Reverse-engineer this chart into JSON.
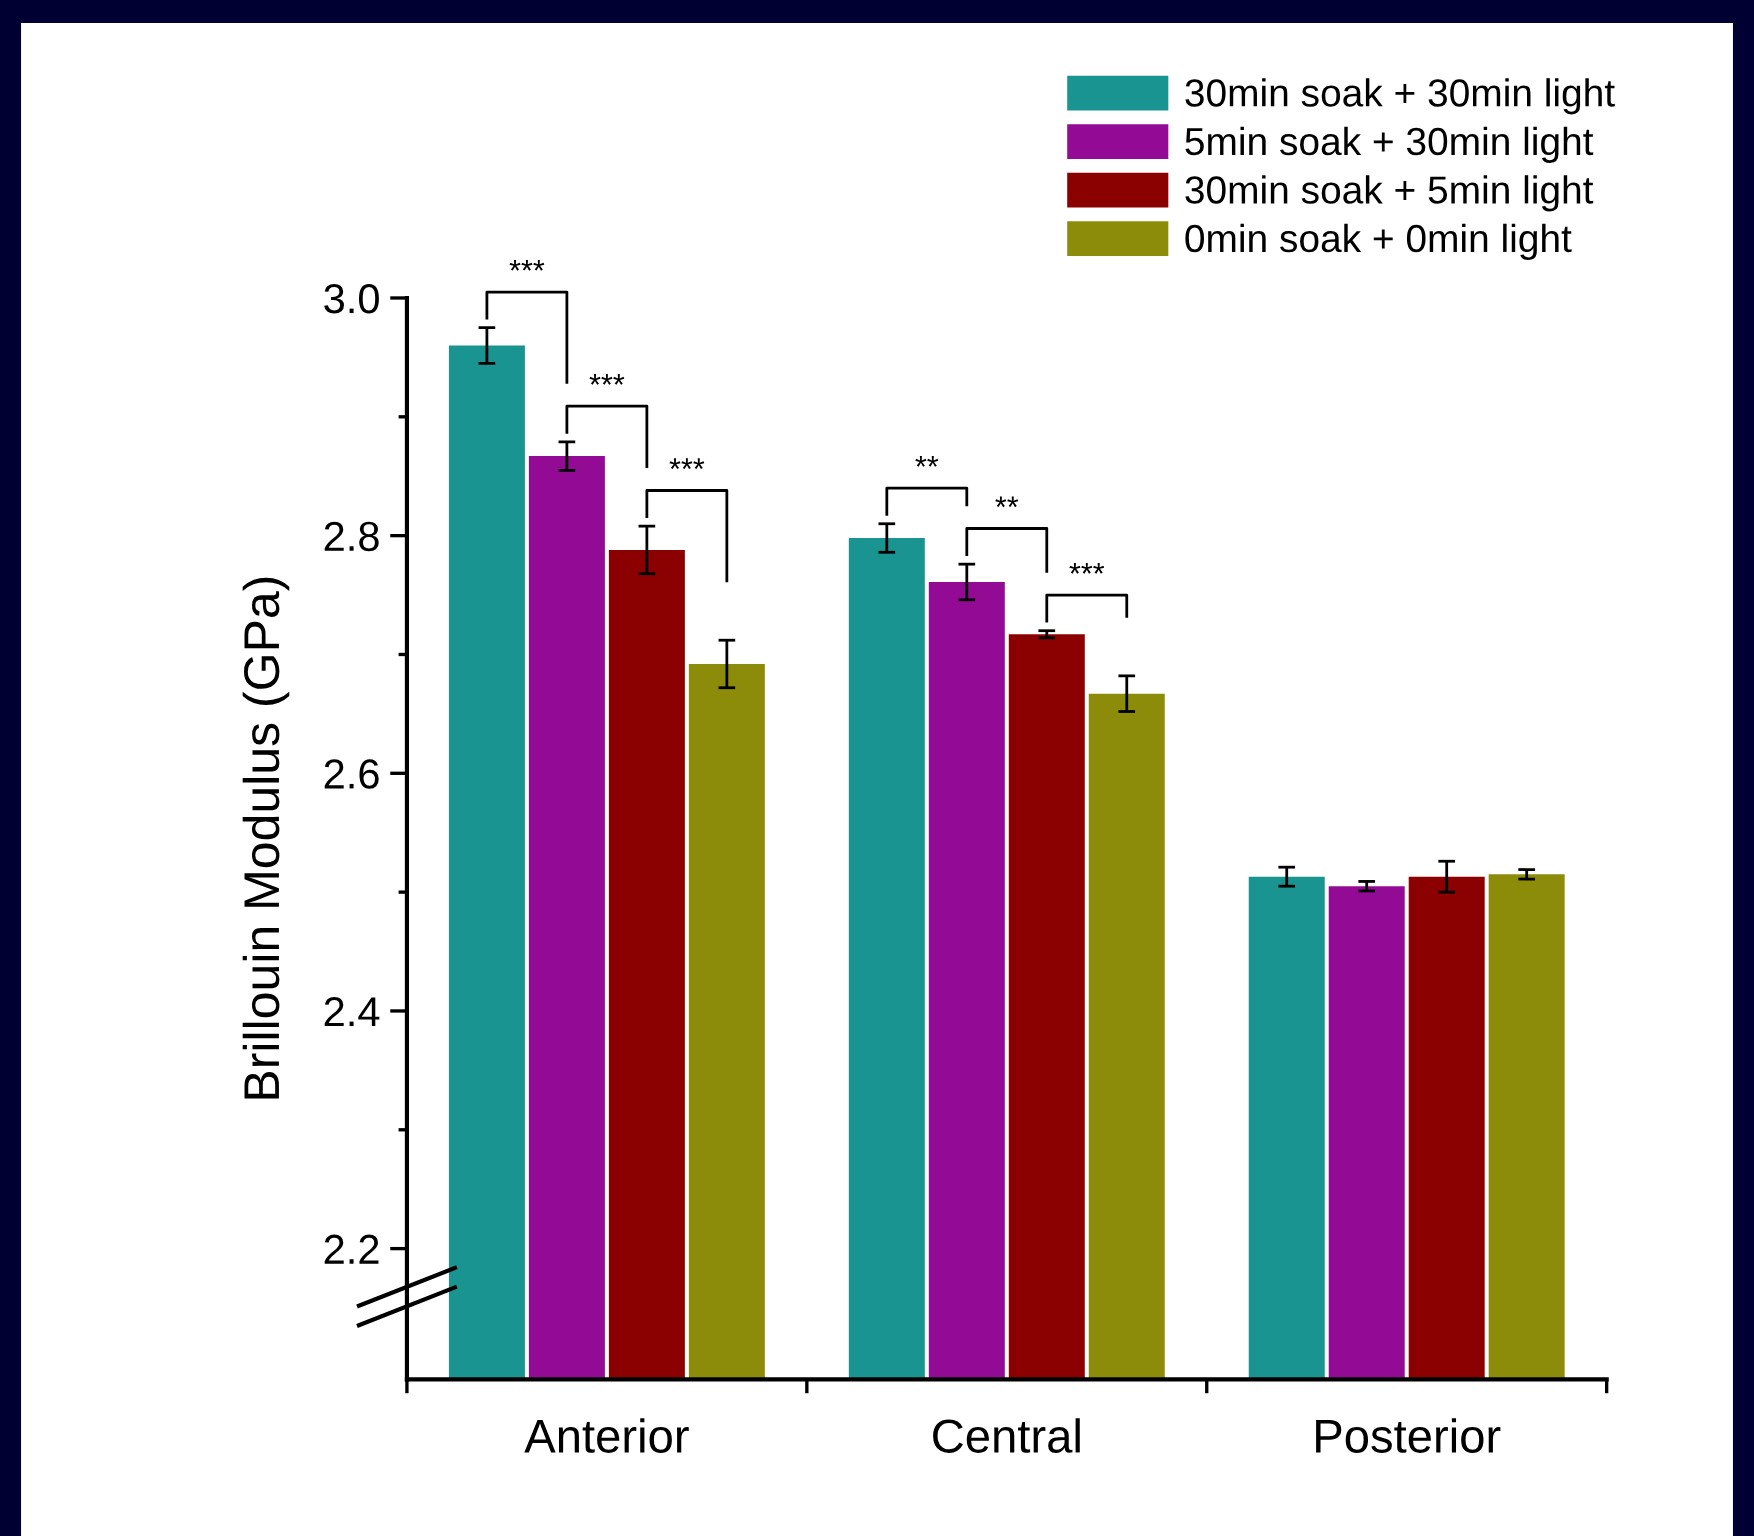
{
  "chart_data": {
    "type": "bar",
    "ylabel": "Brillouin Modulus (GPa)",
    "categories": [
      "Anterior",
      "Central",
      "Posterior"
    ],
    "series": [
      {
        "name": "30min soak + 30min light",
        "color": "#1a9490",
        "values": [
          2.96,
          2.798,
          2.513
        ],
        "errors": [
          0.015,
          0.012,
          0.008
        ]
      },
      {
        "name": "5min soak + 30min light",
        "color": "#930a94",
        "values": [
          2.867,
          2.761,
          2.505
        ],
        "errors": [
          0.012,
          0.015,
          0.004
        ]
      },
      {
        "name": "30min soak + 5min light",
        "color": "#8b0000",
        "values": [
          2.788,
          2.717,
          2.513
        ],
        "errors": [
          0.02,
          0.003,
          0.013
        ]
      },
      {
        "name": "0min soak + 0min light",
        "color": "#8c8c0a",
        "values": [
          2.692,
          2.667,
          2.515
        ],
        "errors": [
          0.02,
          0.015,
          0.004
        ]
      }
    ],
    "ylim": [
      2.09,
      3.0
    ],
    "yticks": [
      2.2,
      2.4,
      2.6,
      2.8,
      {
        "value": 3.0,
        "label": "3.0"
      }
    ],
    "annotations": [
      "***",
      "***",
      "***",
      "**",
      "**",
      "***"
    ],
    "legend": "top right",
    "grid": false
  }
}
